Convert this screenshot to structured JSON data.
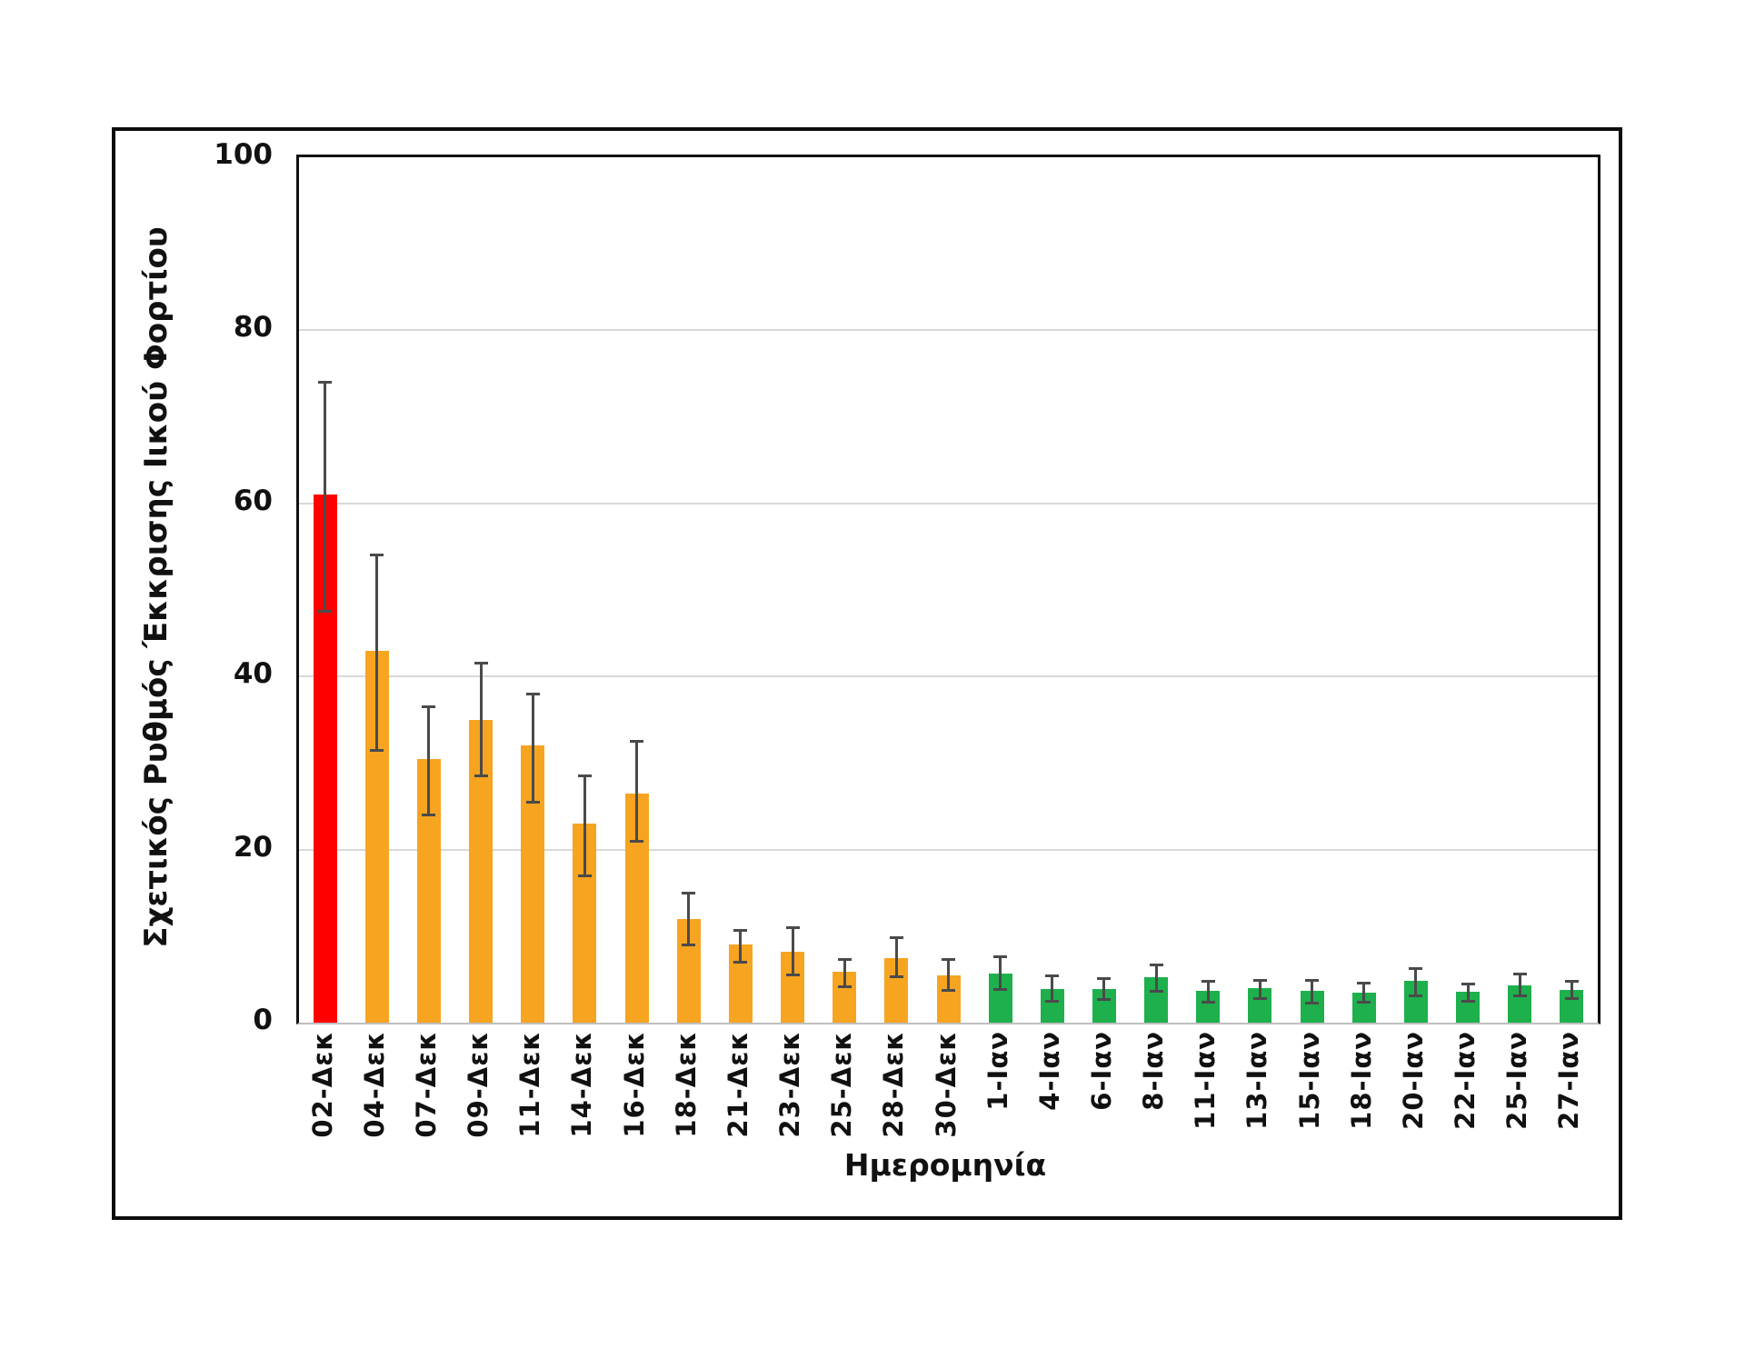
{
  "figure": {
    "y_axis_title": "Σχετικός Ρυθμός Έκκρισης Ιικού Φορτίου",
    "x_axis_title": "Ημερομηνία"
  },
  "chart_data": {
    "type": "bar",
    "title": "",
    "xlabel": "Ημερομηνία",
    "ylabel": "Σχετικός Ρυθμός Έκκρισης Ιικού Φορτίου",
    "ylim": [
      0,
      100
    ],
    "yticks": [
      0,
      20,
      40,
      60,
      80,
      100
    ],
    "grid": true,
    "legend": "none",
    "categories": [
      "02-Δεκ",
      "04-Δεκ",
      "07-Δεκ",
      "09-Δεκ",
      "11-Δεκ",
      "14-Δεκ",
      "16-Δεκ",
      "18-Δεκ",
      "21-Δεκ",
      "23-Δεκ",
      "25-Δεκ",
      "28-Δεκ",
      "30-Δεκ",
      "1-Ιαν",
      "4-Ιαν",
      "6-Ιαν",
      "8-Ιαν",
      "11-Ιαν",
      "13-Ιαν",
      "15-Ιαν",
      "18-Ιαν",
      "20-Ιαν",
      "22-Ιαν",
      "25-Ιαν",
      "27-Ιαν"
    ],
    "values": [
      61,
      43,
      30.5,
      35,
      32,
      23,
      26.5,
      12,
      9,
      8.2,
      5.9,
      7.5,
      5.5,
      5.7,
      3.9,
      3.9,
      5.2,
      3.7,
      4.0,
      3.7,
      3.5,
      4.8,
      3.6,
      4.3,
      3.8
    ],
    "error_low": [
      47.5,
      31.5,
      24,
      28.5,
      25.5,
      17,
      21,
      9,
      7,
      5.5,
      4.2,
      5.3,
      3.7,
      3.8,
      2.5,
      2.7,
      3.6,
      2.4,
      2.8,
      2.3,
      2.4,
      3.1,
      2.5,
      3.1,
      2.8
    ],
    "error_high": [
      74,
      54,
      36.5,
      41.5,
      38,
      28.5,
      32.5,
      15,
      10.7,
      11,
      7.3,
      9.8,
      7.3,
      7.6,
      5.4,
      5.1,
      6.7,
      4.8,
      4.9,
      4.9,
      4.6,
      6.3,
      4.5,
      5.6,
      4.8
    ],
    "bar_color_keys": [
      "red",
      "orange",
      "orange",
      "orange",
      "orange",
      "orange",
      "orange",
      "orange",
      "orange",
      "orange",
      "orange",
      "orange",
      "orange",
      "green",
      "green",
      "green",
      "green",
      "green",
      "green",
      "green",
      "green",
      "green",
      "green",
      "green",
      "green"
    ],
    "palette": {
      "red": "#fe0000",
      "orange": "#f7a421",
      "green": "#1eb04c",
      "error_bar": "#4a4a4a",
      "gridline": "#d9d9d9",
      "axis": "#111111"
    }
  }
}
